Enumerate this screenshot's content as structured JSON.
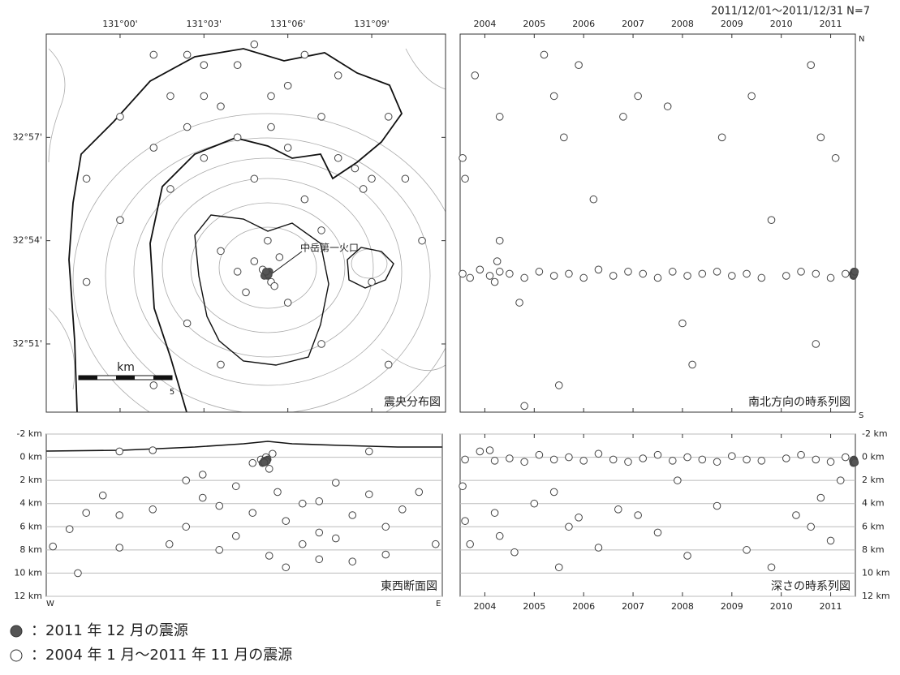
{
  "title": "2011/12/01～2011/12/31 N=7",
  "chart_data": [
    {
      "type": "scatter",
      "label": "震央分布図",
      "annotation": "中岳第一火口",
      "scale_bar": {
        "unit": "km",
        "length": 5
      },
      "xlim": [
        130.956,
        131.194
      ],
      "ylim": [
        32.817,
        33.0
      ],
      "xticks": [
        {
          "value": 131.0,
          "label": "131°00'"
        },
        {
          "value": 131.05,
          "label": "131°03'"
        },
        {
          "value": 131.1,
          "label": "131°06'"
        },
        {
          "value": 131.15,
          "label": "131°09'"
        }
      ],
      "yticks": [
        {
          "value": 32.85,
          "label": "32°51'"
        },
        {
          "value": 32.9,
          "label": "32°54'"
        },
        {
          "value": 32.95,
          "label": "32°57'"
        }
      ],
      "series": [
        {
          "name": "：2004 年 1 月～2011 年 11 月の震源",
          "color": "#ffffff",
          "x": [
            131.02,
            131.05,
            131.08,
            131.11,
            131.13,
            131.03,
            131.06,
            131.09,
            131.12,
            131.0,
            131.04,
            131.07,
            131.1,
            131.02,
            131.05,
            131.13,
            131.14,
            131.15,
            131.145,
            131.08,
            131.03,
            131.11,
            130.98,
            131.16,
            131.09,
            131.085,
            131.08,
            131.092,
            131.07,
            131.095,
            131.088,
            131.075,
            131.1,
            131.06,
            131.12,
            131.0,
            130.98,
            131.15,
            131.04,
            131.12,
            131.06,
            131.16,
            131.02,
            131.17,
            131.18,
            131.05,
            131.07,
            131.1,
            131.04,
            131.09
          ],
          "y": [
            32.99,
            32.985,
            32.995,
            32.99,
            32.98,
            32.97,
            32.965,
            32.97,
            32.96,
            32.96,
            32.955,
            32.95,
            32.945,
            32.945,
            32.94,
            32.94,
            32.935,
            32.93,
            32.925,
            32.93,
            32.925,
            32.92,
            32.93,
            32.96,
            32.88,
            32.886,
            32.89,
            32.878,
            32.885,
            32.892,
            32.9,
            32.875,
            32.87,
            32.895,
            32.905,
            32.91,
            32.88,
            32.88,
            32.86,
            32.85,
            32.84,
            32.84,
            32.83,
            32.93,
            32.9,
            32.97,
            32.985,
            32.975,
            32.99,
            32.955
          ]
        },
        {
          "name": "：2011 年 12 月の震源",
          "color": "#555555",
          "x": [
            131.087,
            131.088,
            131.089,
            131.086,
            131.088,
            131.0885,
            131.087
          ],
          "y": [
            32.884,
            32.883,
            32.885,
            32.883,
            32.884,
            32.8835,
            32.885
          ]
        }
      ]
    },
    {
      "type": "scatter",
      "label": "南北方向の時系列図",
      "top_label": "N",
      "bottom_label": "S",
      "xlim": [
        2004,
        2012
      ],
      "ylim": [
        32.817,
        33.0
      ],
      "xticks": [
        {
          "value": 2004.5,
          "label": "2004"
        },
        {
          "value": 2005.5,
          "label": "2005"
        },
        {
          "value": 2006.5,
          "label": "2006"
        },
        {
          "value": 2007.5,
          "label": "2007"
        },
        {
          "value": 2008.5,
          "label": "2008"
        },
        {
          "value": 2009.5,
          "label": "2009"
        },
        {
          "value": 2010.5,
          "label": "2010"
        },
        {
          "value": 2011.5,
          "label": "2011"
        }
      ],
      "series": [
        {
          "color": "#ffffff",
          "x": [
            2004.05,
            2004.2,
            2004.4,
            2004.6,
            2004.8,
            2004.7,
            2004.75,
            2005.0,
            2005.3,
            2005.6,
            2005.9,
            2006.2,
            2006.5,
            2006.8,
            2007.1,
            2007.4,
            2007.7,
            2008.0,
            2008.3,
            2008.6,
            2008.9,
            2009.2,
            2009.5,
            2009.8,
            2010.1,
            2010.6,
            2010.9,
            2011.2,
            2011.5,
            2011.8,
            2004.05,
            2004.1,
            2004.3,
            2004.8,
            2004.8,
            2005.2,
            2005.7,
            2005.9,
            2006.1,
            2006.4,
            2006.7,
            2007.3,
            2007.6,
            2008.2,
            2008.5,
            2008.7,
            2009.3,
            2009.9,
            2010.3,
            2011.1,
            2011.3,
            2011.6,
            2006.0,
            2005.3,
            2011.2
          ],
          "y": [
            32.884,
            32.882,
            32.886,
            32.883,
            32.885,
            32.88,
            32.89,
            32.884,
            32.882,
            32.885,
            32.883,
            32.884,
            32.882,
            32.886,
            32.883,
            32.885,
            32.884,
            32.882,
            32.885,
            32.883,
            32.884,
            32.885,
            32.883,
            32.884,
            32.882,
            32.883,
            32.885,
            32.884,
            32.882,
            32.884,
            32.94,
            32.93,
            32.98,
            32.96,
            32.9,
            32.87,
            32.99,
            32.97,
            32.95,
            32.985,
            32.92,
            32.96,
            32.97,
            32.965,
            32.86,
            32.84,
            32.95,
            32.97,
            32.91,
            32.985,
            32.95,
            32.94,
            32.83,
            32.82,
            32.85
          ]
        },
        {
          "color": "#555555",
          "x": [
            2011.95,
            2011.96,
            2011.97,
            2011.96,
            2011.98,
            2011.97,
            2011.99
          ],
          "y": [
            32.884,
            32.883,
            32.885,
            32.883,
            32.884,
            32.8835,
            32.885
          ]
        }
      ]
    },
    {
      "type": "scatter",
      "label": "東西断面図",
      "left_label": "W",
      "right_label": "E",
      "grid": true,
      "xlim": [
        130.956,
        131.194
      ],
      "ylim": [
        12,
        -2
      ],
      "yticks": [
        {
          "value": -2,
          "label": "-2 km"
        },
        {
          "value": 0,
          "label": "0 km"
        },
        {
          "value": 2,
          "label": "2 km"
        },
        {
          "value": 4,
          "label": "4 km"
        },
        {
          "value": 6,
          "label": "6 km"
        },
        {
          "value": 8,
          "label": "8 km"
        },
        {
          "value": 10,
          "label": "10 km"
        },
        {
          "value": 12,
          "label": "12 km"
        }
      ],
      "series": [
        {
          "color": "#ffffff",
          "x": [
            131.0,
            131.02,
            131.04,
            131.05,
            131.06,
            131.07,
            131.08,
            131.085,
            131.09,
            131.088,
            131.092,
            131.095,
            131.1,
            131.11,
            131.12,
            131.13,
            131.14,
            131.15,
            131.16,
            131.17,
            131.03,
            131.06,
            131.09,
            131.12,
            131.1,
            131.0,
            130.97,
            130.98,
            130.96,
            130.975,
            131.19,
            131.18,
            131.15,
            131.02,
            131.05,
            131.07,
            131.11,
            131.13,
            131.08,
            131.04,
            131.16,
            131.14,
            131.0,
            130.99,
            131.12
          ],
          "y": [
            5.0,
            4.5,
            6.0,
            3.5,
            4.2,
            2.5,
            0.5,
            0.2,
            1.0,
            0.0,
            -0.3,
            3.0,
            5.5,
            4.0,
            6.5,
            7.0,
            5.0,
            3.2,
            6.0,
            4.5,
            7.5,
            8.0,
            8.5,
            8.8,
            9.5,
            7.8,
            6.2,
            4.8,
            7.7,
            10.0,
            7.5,
            3.0,
            -0.5,
            -0.6,
            1.5,
            6.8,
            7.5,
            2.2,
            4.8,
            2.0,
            8.4,
            9.0,
            -0.5,
            3.3,
            3.8
          ]
        },
        {
          "color": "#555555",
          "x": [
            131.087,
            131.088,
            131.089,
            131.086,
            131.088,
            131.0885,
            131.087
          ],
          "y": [
            0.3,
            0.4,
            0.2,
            0.5,
            0.3,
            0.35,
            0.45
          ]
        }
      ]
    },
    {
      "type": "scatter",
      "label": "深さの時系列図",
      "grid": true,
      "xlim": [
        2004,
        2012
      ],
      "ylim": [
        12,
        -2
      ],
      "xticks": [
        {
          "value": 2004.5,
          "label": "2004"
        },
        {
          "value": 2005.5,
          "label": "2005"
        },
        {
          "value": 2006.5,
          "label": "2006"
        },
        {
          "value": 2007.5,
          "label": "2007"
        },
        {
          "value": 2008.5,
          "label": "2008"
        },
        {
          "value": 2009.5,
          "label": "2009"
        },
        {
          "value": 2010.5,
          "label": "2010"
        },
        {
          "value": 2011.5,
          "label": "2011"
        }
      ],
      "yticks": [
        {
          "value": -2,
          "label": "-2 km"
        },
        {
          "value": 0,
          "label": "0 km"
        },
        {
          "value": 2,
          "label": "2 km"
        },
        {
          "value": 4,
          "label": "4 km"
        },
        {
          "value": 6,
          "label": "6 km"
        },
        {
          "value": 8,
          "label": "8 km"
        },
        {
          "value": 10,
          "label": "10 km"
        },
        {
          "value": 12,
          "label": "12 km"
        }
      ],
      "series": [
        {
          "color": "#ffffff",
          "x": [
            2004.1,
            2004.4,
            2004.7,
            2005.0,
            2005.3,
            2005.6,
            2005.9,
            2006.2,
            2006.5,
            2006.8,
            2007.1,
            2007.4,
            2007.7,
            2008.0,
            2008.3,
            2008.6,
            2008.9,
            2009.2,
            2009.5,
            2009.8,
            2010.1,
            2010.6,
            2010.9,
            2011.2,
            2011.5,
            2011.8,
            2004.6,
            2004.1,
            2004.2,
            2004.05,
            2004.7,
            2004.8,
            2005.1,
            2005.5,
            2005.9,
            2006.0,
            2006.2,
            2006.4,
            2006.8,
            2007.2,
            2007.6,
            2008.0,
            2008.4,
            2008.6,
            2009.2,
            2009.8,
            2010.3,
            2010.8,
            2011.1,
            2011.3,
            2011.5,
            2011.7
          ],
          "y": [
            0.2,
            -0.5,
            0.3,
            0.1,
            0.4,
            -0.2,
            0.2,
            0.0,
            0.3,
            -0.3,
            0.2,
            0.4,
            0.1,
            -0.2,
            0.3,
            0.0,
            0.2,
            0.4,
            -0.1,
            0.2,
            0.3,
            0.1,
            -0.2,
            0.2,
            0.4,
            0.0,
            -0.6,
            5.5,
            7.5,
            2.5,
            4.8,
            6.8,
            8.2,
            4.0,
            3.0,
            9.5,
            6.0,
            5.2,
            7.8,
            4.5,
            5.0,
            6.5,
            2.0,
            8.5,
            4.2,
            8.0,
            9.5,
            5.0,
            6.0,
            3.5,
            7.2,
            2.0
          ]
        },
        {
          "color": "#555555",
          "x": [
            2011.95,
            2011.96,
            2011.97,
            2011.96,
            2011.98,
            2011.97,
            2011.99
          ],
          "y": [
            0.3,
            0.4,
            0.2,
            0.5,
            0.3,
            0.35,
            0.45
          ]
        }
      ]
    }
  ]
}
